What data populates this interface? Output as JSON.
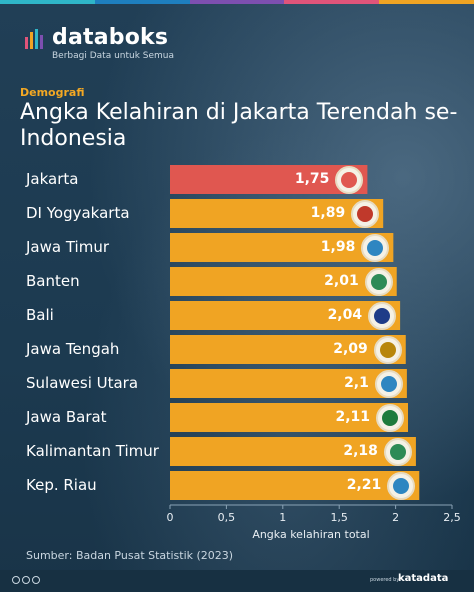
{
  "brand": {
    "name": "databoks",
    "tagline": "Berbagi Data untuk Semua"
  },
  "category": "Demografi",
  "title": "Angka Kelahiran di Jakarta Terendah se-Indonesia",
  "source": "Sumber: Badan Pusat Statistik (2023)",
  "footer": {
    "powered_by": "powered by",
    "publisher": "katadata"
  },
  "colors": {
    "highlight": "#e05750",
    "bar": "#f0a423",
    "accent": "#f4a823",
    "strip": [
      "#2fb6c8",
      "#1e7fbf",
      "#7d4fb0",
      "#e0547a",
      "#f0a423"
    ]
  },
  "chart_data": {
    "type": "bar",
    "orientation": "horizontal",
    "categories": [
      "Jakarta",
      "DI Yogyakarta",
      "Jawa Timur",
      "Banten",
      "Bali",
      "Jawa Tengah",
      "Sulawesi Utara",
      "Jawa Barat",
      "Kalimantan Timur",
      "Kep. Riau"
    ],
    "values": [
      1.75,
      1.89,
      1.98,
      2.01,
      2.04,
      2.09,
      2.1,
      2.11,
      2.18,
      2.21
    ],
    "value_labels": [
      "1,75",
      "1,89",
      "1,98",
      "2,01",
      "2,04",
      "2,09",
      "2,1",
      "2,11",
      "2,18",
      "2,21"
    ],
    "highlight_index": 0,
    "xlabel": "Angka kelahiran total",
    "xlim": [
      0,
      2.5
    ],
    "xticks": [
      "0",
      "0,5",
      "1",
      "1,5",
      "2",
      "2,5"
    ],
    "grid": false,
    "icons": [
      "jakarta-seal-icon",
      "yogyakarta-seal-icon",
      "jawa-timur-seal-icon",
      "banten-seal-icon",
      "bali-seal-icon",
      "jawa-tengah-seal-icon",
      "sulawesi-utara-seal-icon",
      "jawa-barat-seal-icon",
      "kalimantan-timur-seal-icon",
      "kep-riau-seal-icon"
    ]
  }
}
